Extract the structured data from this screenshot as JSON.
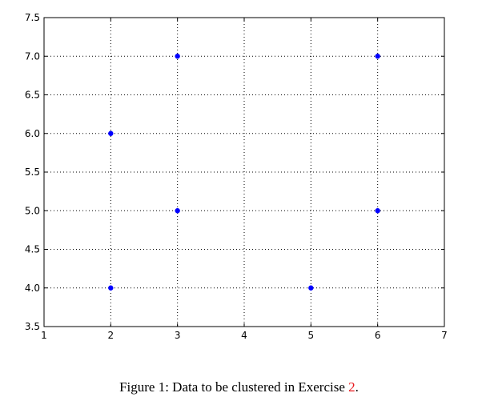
{
  "chart_data": {
    "type": "scatter",
    "title": "",
    "xlabel": "",
    "ylabel": "",
    "xlim": [
      1,
      7
    ],
    "ylim": [
      3.5,
      7.5
    ],
    "xticks": [
      1,
      2,
      3,
      4,
      5,
      6,
      7
    ],
    "xtick_labels": [
      "1",
      "2",
      "3",
      "4",
      "5",
      "6",
      "7"
    ],
    "yticks": [
      3.5,
      4.0,
      4.5,
      5.0,
      5.5,
      6.0,
      6.5,
      7.0,
      7.5
    ],
    "ytick_labels": [
      "3.5",
      "4.0",
      "4.5",
      "5.0",
      "5.5",
      "6.0",
      "6.5",
      "7.0",
      "7.5"
    ],
    "grid": true,
    "point_color": "#0000ff",
    "points": [
      {
        "x": 2,
        "y": 4
      },
      {
        "x": 2,
        "y": 6
      },
      {
        "x": 3,
        "y": 5
      },
      {
        "x": 3,
        "y": 7
      },
      {
        "x": 5,
        "y": 4
      },
      {
        "x": 6,
        "y": 5
      },
      {
        "x": 6,
        "y": 7
      }
    ]
  },
  "caption": {
    "text": "Figure 1: Data to be clustered in Exercise ",
    "ref": "2",
    "suffix": ".",
    "ref_color": "#e8161b"
  }
}
